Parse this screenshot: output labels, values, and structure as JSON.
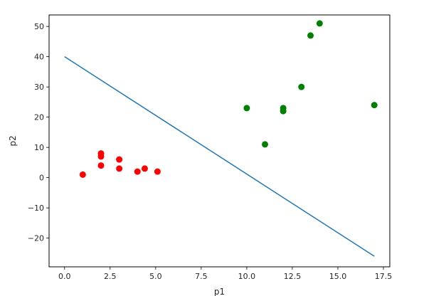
{
  "chart_data": {
    "type": "scatter",
    "title": "",
    "xlabel": "p1",
    "ylabel": "p2",
    "xlim": [
      -0.85,
      17.85
    ],
    "ylim": [
      -29.5,
      53.8
    ],
    "xticks": [
      0.0,
      2.5,
      5.0,
      7.5,
      10.0,
      12.5,
      15.0,
      17.5
    ],
    "xtick_labels": [
      "0.0",
      "2.5",
      "5.0",
      "7.5",
      "10.0",
      "12.5",
      "15.0",
      "17.5"
    ],
    "yticks": [
      -20,
      -10,
      0,
      10,
      20,
      30,
      40,
      50
    ],
    "ytick_labels": [
      "−20",
      "−10",
      "0",
      "10",
      "20",
      "30",
      "40",
      "50"
    ],
    "grid": false,
    "series": [
      {
        "kind": "scatter",
        "color": "#ff0000",
        "points": [
          {
            "x": 1.0,
            "y": 1.0
          },
          {
            "x": 2.0,
            "y": 4.0
          },
          {
            "x": 2.0,
            "y": 7.0
          },
          {
            "x": 2.0,
            "y": 8.0
          },
          {
            "x": 3.0,
            "y": 3.0
          },
          {
            "x": 3.0,
            "y": 6.0
          },
          {
            "x": 4.0,
            "y": 2.0
          },
          {
            "x": 4.4,
            "y": 3.0
          },
          {
            "x": 5.1,
            "y": 2.0
          }
        ]
      },
      {
        "kind": "scatter",
        "color": "#008000",
        "points": [
          {
            "x": 10.0,
            "y": 23.0
          },
          {
            "x": 11.0,
            "y": 11.0
          },
          {
            "x": 12.0,
            "y": 22.0
          },
          {
            "x": 12.0,
            "y": 23.0
          },
          {
            "x": 13.0,
            "y": 30.0
          },
          {
            "x": 13.5,
            "y": 47.0
          },
          {
            "x": 14.0,
            "y": 51.0
          },
          {
            "x": 17.0,
            "y": 24.0
          }
        ]
      },
      {
        "kind": "line",
        "color": "#1f77b4",
        "points": [
          {
            "x": 0.0,
            "y": 40.0
          },
          {
            "x": 17.0,
            "y": -26.0
          }
        ]
      }
    ]
  }
}
